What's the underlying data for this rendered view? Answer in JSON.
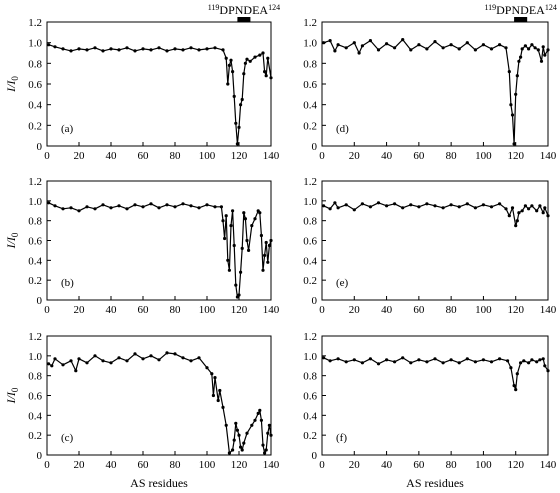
{
  "chart_data": {
    "type": "line",
    "xlabel": "AS residues",
    "ylabel_main": "I/I",
    "ylabel_sub": "0",
    "x_ticks": [
      0,
      20,
      40,
      60,
      80,
      100,
      120,
      140
    ],
    "y_ticks": [
      "0",
      "0.2",
      "0.4",
      "0.6",
      "0.8",
      "1.0",
      "1.2"
    ],
    "x_range": [
      0,
      140
    ],
    "y_range": [
      0,
      1.2
    ],
    "region": {
      "start_residue": "119",
      "name": "DPNDEA",
      "end_residue": "124",
      "x_range": [
        119,
        124
      ]
    },
    "panels": [
      {
        "label": "(a)",
        "series": [
          [
            1,
            0.98
          ],
          [
            5,
            0.96
          ],
          [
            10,
            0.94
          ],
          [
            15,
            0.92
          ],
          [
            20,
            0.94
          ],
          [
            25,
            0.93
          ],
          [
            30,
            0.95
          ],
          [
            35,
            0.92
          ],
          [
            40,
            0.94
          ],
          [
            45,
            0.93
          ],
          [
            50,
            0.95
          ],
          [
            55,
            0.92
          ],
          [
            60,
            0.94
          ],
          [
            65,
            0.93
          ],
          [
            70,
            0.95
          ],
          [
            75,
            0.92
          ],
          [
            80,
            0.94
          ],
          [
            85,
            0.93
          ],
          [
            90,
            0.95
          ],
          [
            95,
            0.93
          ],
          [
            100,
            0.94
          ],
          [
            105,
            0.95
          ],
          [
            110,
            0.93
          ],
          [
            112,
            0.85
          ],
          [
            113,
            0.6
          ],
          [
            114,
            0.78
          ],
          [
            115,
            0.83
          ],
          [
            116,
            0.72
          ],
          [
            117,
            0.48
          ],
          [
            118,
            0.22
          ],
          [
            119,
            0.02
          ],
          [
            120,
            0.18
          ],
          [
            121,
            0.4
          ],
          [
            122,
            0.45
          ],
          [
            123,
            0.7
          ],
          [
            124,
            0.8
          ],
          [
            125,
            0.84
          ],
          [
            127,
            0.82
          ],
          [
            130,
            0.86
          ],
          [
            133,
            0.88
          ],
          [
            135,
            0.9
          ],
          [
            136,
            0.72
          ],
          [
            137,
            0.68
          ],
          [
            138,
            0.85
          ],
          [
            140,
            0.66
          ]
        ]
      },
      {
        "label": "(b)",
        "series": [
          [
            1,
            0.98
          ],
          [
            5,
            0.95
          ],
          [
            10,
            0.92
          ],
          [
            15,
            0.93
          ],
          [
            20,
            0.9
          ],
          [
            25,
            0.94
          ],
          [
            30,
            0.92
          ],
          [
            35,
            0.96
          ],
          [
            40,
            0.93
          ],
          [
            45,
            0.95
          ],
          [
            50,
            0.92
          ],
          [
            55,
            0.96
          ],
          [
            60,
            0.94
          ],
          [
            65,
            0.97
          ],
          [
            70,
            0.93
          ],
          [
            75,
            0.96
          ],
          [
            80,
            0.94
          ],
          [
            85,
            0.97
          ],
          [
            90,
            0.95
          ],
          [
            95,
            0.93
          ],
          [
            100,
            0.96
          ],
          [
            105,
            0.94
          ],
          [
            109,
            0.94
          ],
          [
            110,
            0.8
          ],
          [
            111,
            0.62
          ],
          [
            112,
            0.85
          ],
          [
            113,
            0.4
          ],
          [
            114,
            0.3
          ],
          [
            115,
            0.75
          ],
          [
            116,
            0.9
          ],
          [
            117,
            0.55
          ],
          [
            118,
            0.15
          ],
          [
            119,
            0.03
          ],
          [
            120,
            0.05
          ],
          [
            121,
            0.28
          ],
          [
            122,
            0.52
          ],
          [
            123,
            0.88
          ],
          [
            124,
            0.82
          ],
          [
            125,
            0.6
          ],
          [
            126,
            0.5
          ],
          [
            128,
            0.75
          ],
          [
            130,
            0.82
          ],
          [
            132,
            0.9
          ],
          [
            133,
            0.88
          ],
          [
            134,
            0.65
          ],
          [
            135,
            0.3
          ],
          [
            136,
            0.45
          ],
          [
            137,
            0.58
          ],
          [
            138,
            0.38
          ],
          [
            139,
            0.55
          ],
          [
            140,
            0.6
          ]
        ]
      },
      {
        "label": "(c)",
        "series": [
          [
            1,
            0.92
          ],
          [
            3,
            0.9
          ],
          [
            5,
            0.97
          ],
          [
            10,
            0.91
          ],
          [
            15,
            0.95
          ],
          [
            18,
            0.85
          ],
          [
            20,
            0.97
          ],
          [
            25,
            0.93
          ],
          [
            30,
            1.0
          ],
          [
            35,
            0.95
          ],
          [
            40,
            0.93
          ],
          [
            45,
            0.98
          ],
          [
            50,
            0.95
          ],
          [
            55,
            1.02
          ],
          [
            60,
            0.97
          ],
          [
            65,
            1.0
          ],
          [
            70,
            0.96
          ],
          [
            75,
            1.03
          ],
          [
            80,
            1.02
          ],
          [
            85,
            0.98
          ],
          [
            90,
            0.95
          ],
          [
            95,
            0.98
          ],
          [
            100,
            0.88
          ],
          [
            103,
            0.82
          ],
          [
            104,
            0.6
          ],
          [
            105,
            0.78
          ],
          [
            107,
            0.55
          ],
          [
            108,
            0.65
          ],
          [
            110,
            0.48
          ],
          [
            112,
            0.3
          ],
          [
            114,
            0.02
          ],
          [
            116,
            0.05
          ],
          [
            117,
            0.15
          ],
          [
            118,
            0.32
          ],
          [
            119,
            0.25
          ],
          [
            120,
            0.2
          ],
          [
            121,
            0.08
          ],
          [
            122,
            0.05
          ],
          [
            123,
            0.12
          ],
          [
            125,
            0.22
          ],
          [
            128,
            0.3
          ],
          [
            130,
            0.35
          ],
          [
            132,
            0.42
          ],
          [
            133,
            0.45
          ],
          [
            134,
            0.35
          ],
          [
            135,
            0.1
          ],
          [
            136,
            0.02
          ],
          [
            137,
            0.05
          ],
          [
            138,
            0.22
          ],
          [
            139,
            0.3
          ],
          [
            140,
            0.2
          ]
        ]
      },
      {
        "label": "(d)",
        "series": [
          [
            1,
            1.0
          ],
          [
            5,
            1.02
          ],
          [
            8,
            0.92
          ],
          [
            10,
            0.98
          ],
          [
            15,
            0.95
          ],
          [
            20,
            1.0
          ],
          [
            23,
            0.9
          ],
          [
            25,
            0.97
          ],
          [
            30,
            1.02
          ],
          [
            35,
            0.93
          ],
          [
            40,
            0.99
          ],
          [
            45,
            0.95
          ],
          [
            50,
            1.03
          ],
          [
            55,
            0.93
          ],
          [
            60,
            0.98
          ],
          [
            65,
            0.94
          ],
          [
            70,
            1.01
          ],
          [
            75,
            0.95
          ],
          [
            80,
            0.98
          ],
          [
            85,
            0.94
          ],
          [
            90,
            1.0
          ],
          [
            95,
            0.93
          ],
          [
            100,
            0.98
          ],
          [
            105,
            0.94
          ],
          [
            110,
            0.98
          ],
          [
            114,
            0.95
          ],
          [
            116,
            0.72
          ],
          [
            117,
            0.4
          ],
          [
            118,
            0.3
          ],
          [
            119,
            0.02
          ],
          [
            120,
            0.5
          ],
          [
            121,
            0.68
          ],
          [
            122,
            0.82
          ],
          [
            123,
            0.86
          ],
          [
            124,
            0.94
          ],
          [
            126,
            0.97
          ],
          [
            128,
            0.94
          ],
          [
            130,
            0.98
          ],
          [
            132,
            0.95
          ],
          [
            134,
            0.93
          ],
          [
            136,
            0.82
          ],
          [
            137,
            0.96
          ],
          [
            138,
            0.88
          ],
          [
            140,
            0.93
          ]
        ]
      },
      {
        "label": "(e)",
        "series": [
          [
            1,
            0.95
          ],
          [
            5,
            0.92
          ],
          [
            8,
            0.98
          ],
          [
            10,
            0.93
          ],
          [
            15,
            0.96
          ],
          [
            20,
            0.91
          ],
          [
            25,
            0.97
          ],
          [
            30,
            0.94
          ],
          [
            35,
            0.98
          ],
          [
            40,
            0.95
          ],
          [
            45,
            0.97
          ],
          [
            50,
            0.93
          ],
          [
            55,
            0.96
          ],
          [
            60,
            0.94
          ],
          [
            65,
            0.97
          ],
          [
            70,
            0.95
          ],
          [
            75,
            0.93
          ],
          [
            80,
            0.96
          ],
          [
            85,
            0.94
          ],
          [
            90,
            0.97
          ],
          [
            95,
            0.93
          ],
          [
            100,
            0.96
          ],
          [
            105,
            0.94
          ],
          [
            110,
            0.97
          ],
          [
            114,
            0.92
          ],
          [
            116,
            0.85
          ],
          [
            118,
            0.93
          ],
          [
            120,
            0.75
          ],
          [
            121,
            0.8
          ],
          [
            122,
            0.88
          ],
          [
            124,
            0.9
          ],
          [
            126,
            0.95
          ],
          [
            128,
            0.92
          ],
          [
            130,
            0.95
          ],
          [
            133,
            0.9
          ],
          [
            135,
            0.95
          ],
          [
            137,
            0.88
          ],
          [
            138,
            0.93
          ],
          [
            140,
            0.85
          ]
        ]
      },
      {
        "label": "(f)",
        "series": [
          [
            1,
            0.98
          ],
          [
            5,
            0.95
          ],
          [
            10,
            0.97
          ],
          [
            15,
            0.94
          ],
          [
            20,
            0.96
          ],
          [
            25,
            0.93
          ],
          [
            30,
            0.97
          ],
          [
            35,
            0.92
          ],
          [
            40,
            0.96
          ],
          [
            45,
            0.94
          ],
          [
            50,
            0.98
          ],
          [
            55,
            0.93
          ],
          [
            60,
            0.96
          ],
          [
            65,
            0.94
          ],
          [
            70,
            0.97
          ],
          [
            75,
            0.93
          ],
          [
            80,
            0.96
          ],
          [
            85,
            0.93
          ],
          [
            90,
            0.97
          ],
          [
            95,
            0.94
          ],
          [
            100,
            0.96
          ],
          [
            105,
            0.94
          ],
          [
            110,
            0.97
          ],
          [
            115,
            0.95
          ],
          [
            117,
            0.88
          ],
          [
            119,
            0.7
          ],
          [
            120,
            0.66
          ],
          [
            121,
            0.82
          ],
          [
            123,
            0.93
          ],
          [
            125,
            0.95
          ],
          [
            128,
            0.93
          ],
          [
            130,
            0.96
          ],
          [
            133,
            0.94
          ],
          [
            135,
            0.96
          ],
          [
            137,
            0.97
          ],
          [
            138,
            0.9
          ],
          [
            140,
            0.85
          ]
        ]
      }
    ]
  }
}
